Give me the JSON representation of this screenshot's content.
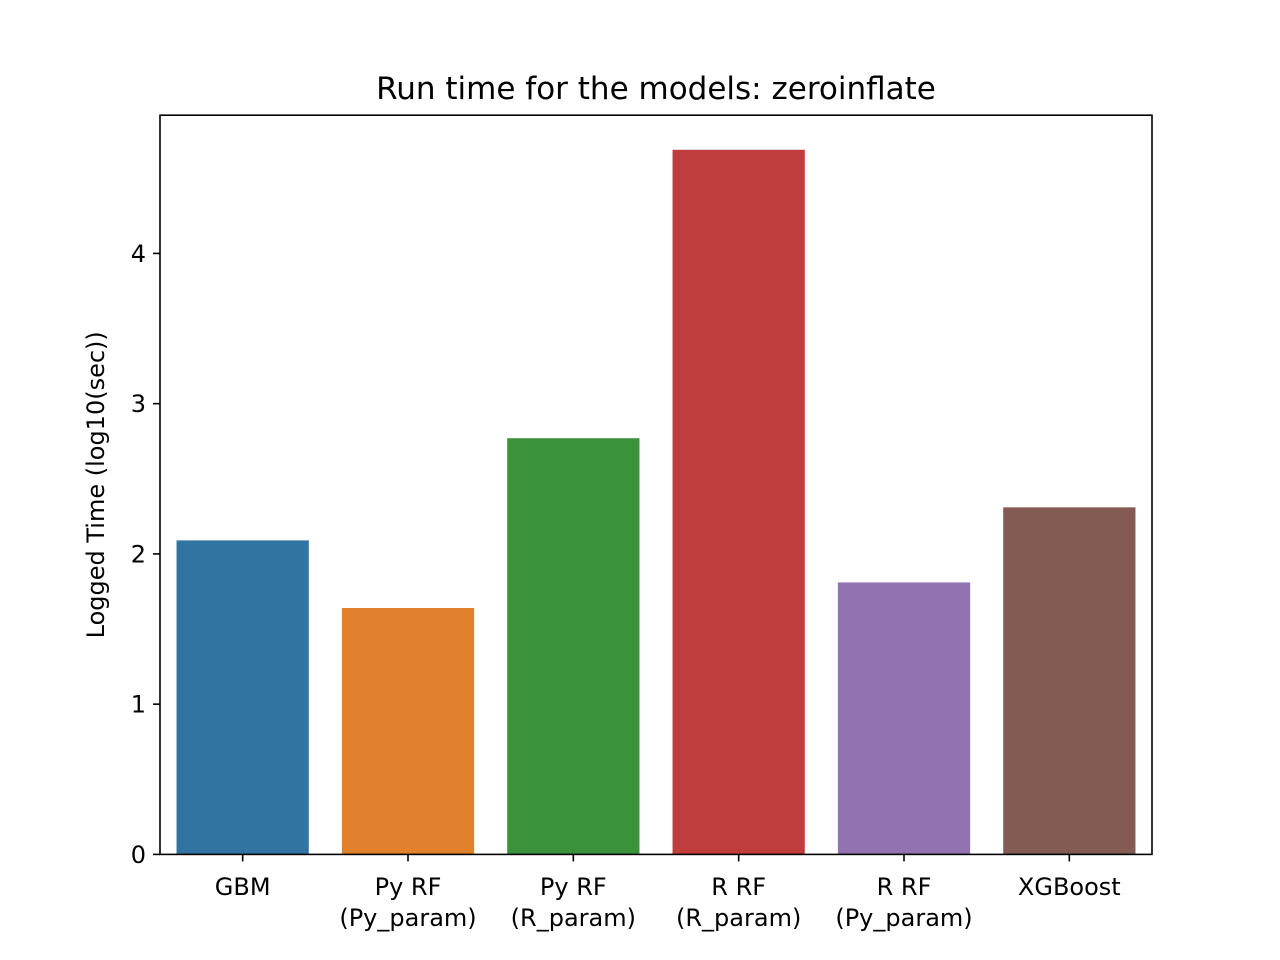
{
  "chart_data": {
    "type": "bar",
    "title": "Run time for the models: zeroinflate",
    "xlabel": "",
    "ylabel": "Logged Time (log10(sec))",
    "categories": [
      [
        "GBM"
      ],
      [
        "Py RF",
        "(Py_param)"
      ],
      [
        "Py RF",
        "(R_param)"
      ],
      [
        "R RF",
        "(R_param)"
      ],
      [
        "R RF",
        "(Py_param)"
      ],
      [
        "XGBoost"
      ]
    ],
    "values": [
      2.09,
      1.64,
      2.77,
      4.69,
      1.81,
      2.31
    ],
    "colors": [
      "#3274a1",
      "#e1812c",
      "#3a923a",
      "#c03d3e",
      "#9372b2",
      "#845b53"
    ],
    "ylim": [
      0,
      4.92
    ],
    "yticks": [
      0,
      1,
      2,
      3,
      4
    ],
    "grid": false,
    "legend": "none"
  }
}
